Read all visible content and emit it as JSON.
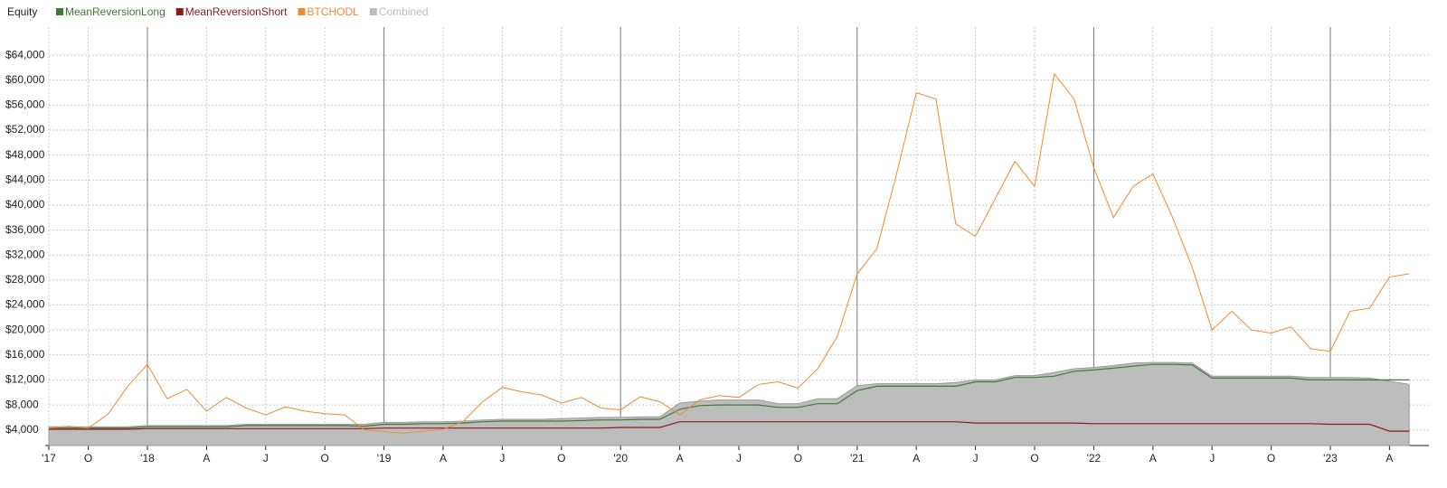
{
  "chart_data": {
    "type": "line",
    "title": "Equity",
    "x": [
      "2017-08",
      "2017-09",
      "2017-10",
      "2017-11",
      "2017-12",
      "2018-01",
      "2018-02",
      "2018-03",
      "2018-04",
      "2018-05",
      "2018-06",
      "2018-07",
      "2018-08",
      "2018-09",
      "2018-10",
      "2018-11",
      "2018-12",
      "2019-01",
      "2019-02",
      "2019-03",
      "2019-04",
      "2019-05",
      "2019-06",
      "2019-07",
      "2019-08",
      "2019-09",
      "2019-10",
      "2019-11",
      "2019-12",
      "2020-01",
      "2020-02",
      "2020-03",
      "2020-04",
      "2020-05",
      "2020-06",
      "2020-07",
      "2020-08",
      "2020-09",
      "2020-10",
      "2020-11",
      "2020-12",
      "2021-01",
      "2021-02",
      "2021-03",
      "2021-04",
      "2021-05",
      "2021-06",
      "2021-07",
      "2021-08",
      "2021-09",
      "2021-10",
      "2021-11",
      "2021-12",
      "2022-01",
      "2022-02",
      "2022-03",
      "2022-04",
      "2022-05",
      "2022-06",
      "2022-07",
      "2022-08",
      "2022-09",
      "2022-10",
      "2022-11",
      "2022-12",
      "2023-01",
      "2023-02",
      "2023-03",
      "2023-04",
      "2023-05"
    ],
    "series": [
      {
        "name": "MeanReversionLong",
        "color": "#3d7a35",
        "type": "line",
        "values": [
          4300,
          4300,
          4300,
          4300,
          4300,
          4500,
          4500,
          4500,
          4500,
          4500,
          4700,
          4700,
          4700,
          4700,
          4700,
          4700,
          4600,
          4900,
          4900,
          5000,
          5000,
          5100,
          5300,
          5400,
          5400,
          5400,
          5400,
          5500,
          5600,
          5600,
          5700,
          5700,
          7300,
          7900,
          8000,
          8000,
          8000,
          7600,
          7600,
          8200,
          8200,
          10300,
          11000,
          11000,
          11000,
          11000,
          11000,
          11700,
          11700,
          12400,
          12400,
          12600,
          13400,
          13600,
          13900,
          14200,
          14500,
          14500,
          14400,
          12300,
          12300,
          12300,
          12300,
          12300,
          12000,
          12000,
          12000,
          12000,
          12000,
          12000
        ]
      },
      {
        "name": "MeanReversionShort",
        "color": "#8b1a1a",
        "type": "line",
        "values": [
          4100,
          4100,
          4100,
          4100,
          4100,
          4200,
          4200,
          4200,
          4200,
          4200,
          4200,
          4200,
          4200,
          4200,
          4200,
          4200,
          4200,
          4300,
          4300,
          4300,
          4300,
          4300,
          4300,
          4300,
          4300,
          4300,
          4300,
          4300,
          4300,
          4400,
          4400,
          4400,
          5300,
          5300,
          5300,
          5300,
          5300,
          5300,
          5300,
          5300,
          5300,
          5300,
          5300,
          5300,
          5300,
          5300,
          5300,
          5100,
          5100,
          5100,
          5100,
          5100,
          5100,
          5000,
          5000,
          5000,
          5000,
          5000,
          5000,
          5000,
          5000,
          5000,
          5000,
          5000,
          5000,
          4900,
          4900,
          4900,
          3800,
          3800
        ]
      },
      {
        "name": "BTCHODL",
        "color": "#f28a30",
        "type": "line",
        "values": [
          4300,
          4600,
          4300,
          6500,
          11000,
          14500,
          9000,
          10500,
          7000,
          9200,
          7500,
          6400,
          7700,
          7000,
          6600,
          6400,
          4000,
          3700,
          3500,
          3800,
          4100,
          5300,
          8500,
          10800,
          10100,
          9600,
          8300,
          9200,
          7500,
          7200,
          9300,
          8500,
          6400,
          8800,
          9500,
          9200,
          11300,
          11700,
          10700,
          13800,
          19000,
          29000,
          33000,
          45000,
          58000,
          57000,
          37000,
          35000,
          41000,
          47000,
          43000,
          61000,
          57000,
          46000,
          38000,
          43000,
          45000,
          38000,
          30000,
          20000,
          23000,
          20000,
          19500,
          20500,
          17000,
          16600,
          23000,
          23500,
          28500,
          29000
        ]
      },
      {
        "name": "Combined",
        "color": "#bdbdbd",
        "type": "area",
        "values": [
          4500,
          4500,
          4500,
          4500,
          4500,
          4700,
          4700,
          4700,
          4700,
          4700,
          4900,
          4900,
          4900,
          4900,
          4900,
          4900,
          4900,
          5200,
          5200,
          5300,
          5300,
          5400,
          5600,
          5700,
          5700,
          5700,
          5800,
          5900,
          6000,
          6000,
          6100,
          6100,
          8300,
          8600,
          8800,
          8800,
          8800,
          8200,
          8200,
          9000,
          9000,
          11100,
          11400,
          11400,
          11400,
          11400,
          11600,
          12000,
          12000,
          12700,
          12700,
          13200,
          13800,
          14000,
          14300,
          14700,
          14800,
          14800,
          14700,
          12600,
          12600,
          12600,
          12600,
          12600,
          12400,
          12400,
          12400,
          12300,
          11800,
          11300
        ]
      }
    ],
    "xlim": [
      "2017-08",
      "2023-06"
    ],
    "xticks": [
      {
        "value": "2017-08",
        "label": "'17"
      },
      {
        "value": "2017-10",
        "label": "O"
      },
      {
        "value": "2018-01",
        "label": "'18"
      },
      {
        "value": "2018-04",
        "label": "A"
      },
      {
        "value": "2018-07",
        "label": "J"
      },
      {
        "value": "2018-10",
        "label": "O"
      },
      {
        "value": "2019-01",
        "label": "'19"
      },
      {
        "value": "2019-04",
        "label": "A"
      },
      {
        "value": "2019-07",
        "label": "J"
      },
      {
        "value": "2019-10",
        "label": "O"
      },
      {
        "value": "2020-01",
        "label": "'20"
      },
      {
        "value": "2020-04",
        "label": "A"
      },
      {
        "value": "2020-07",
        "label": "J"
      },
      {
        "value": "2020-10",
        "label": "O"
      },
      {
        "value": "2021-01",
        "label": "'21"
      },
      {
        "value": "2021-04",
        "label": "A"
      },
      {
        "value": "2021-07",
        "label": "J"
      },
      {
        "value": "2021-10",
        "label": "O"
      },
      {
        "value": "2022-01",
        "label": "'22"
      },
      {
        "value": "2022-04",
        "label": "A"
      },
      {
        "value": "2022-07",
        "label": "J"
      },
      {
        "value": "2022-10",
        "label": "O"
      },
      {
        "value": "2023-01",
        "label": "'23"
      },
      {
        "value": "2023-04",
        "label": "A"
      }
    ],
    "ylim": [
      1500,
      68500
    ],
    "yticks": [
      {
        "value": 4000,
        "label": "$4,000"
      },
      {
        "value": 8000,
        "label": "$8,000"
      },
      {
        "value": 12000,
        "label": "$12,000"
      },
      {
        "value": 16000,
        "label": "$16,000"
      },
      {
        "value": 20000,
        "label": "$20,000"
      },
      {
        "value": 24000,
        "label": "$24,000"
      },
      {
        "value": 28000,
        "label": "$28,000"
      },
      {
        "value": 32000,
        "label": "$32,000"
      },
      {
        "value": 36000,
        "label": "$36,000"
      },
      {
        "value": 40000,
        "label": "$40,000"
      },
      {
        "value": 44000,
        "label": "$44,000"
      },
      {
        "value": 48000,
        "label": "$48,000"
      },
      {
        "value": 52000,
        "label": "$52,000"
      },
      {
        "value": 56000,
        "label": "$56,000"
      },
      {
        "value": 60000,
        "label": "$60,000"
      },
      {
        "value": 64000,
        "label": "$64,000"
      }
    ],
    "grid": true
  }
}
